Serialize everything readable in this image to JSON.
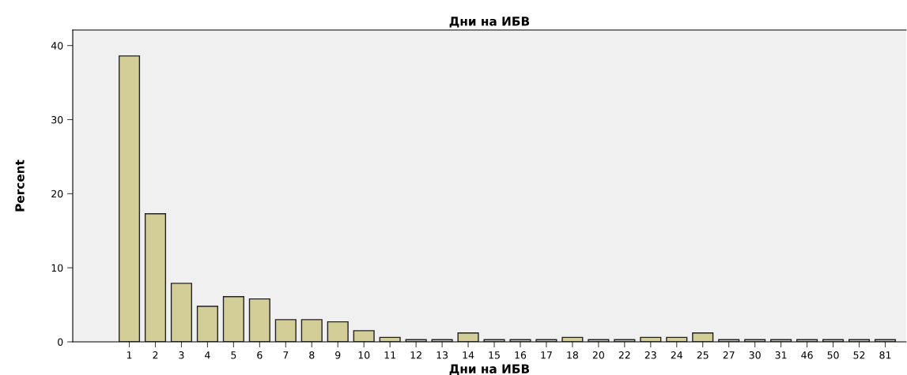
{
  "chart_data": {
    "type": "bar",
    "title": "Дни на ИБВ",
    "xlabel": "Дни на ИБВ",
    "ylabel": "Percent",
    "categories": [
      "1",
      "2",
      "3",
      "4",
      "5",
      "6",
      "7",
      "8",
      "9",
      "10",
      "11",
      "12",
      "13",
      "14",
      "15",
      "16",
      "17",
      "18",
      "20",
      "22",
      "23",
      "24",
      "25",
      "27",
      "30",
      "31",
      "46",
      "50",
      "52",
      "81"
    ],
    "values": [
      38.6,
      17.3,
      7.9,
      4.8,
      6.1,
      5.8,
      3.0,
      3.0,
      2.7,
      1.5,
      0.6,
      0.3,
      0.3,
      1.2,
      0.3,
      0.3,
      0.3,
      0.6,
      0.3,
      0.3,
      0.6,
      0.6,
      1.2,
      0.3,
      0.3,
      0.3,
      0.3,
      0.3,
      0.3,
      0.3
    ],
    "color": "#d3ce97",
    "ylim": [
      0,
      42.1
    ],
    "yticks": [
      0,
      10,
      20,
      30,
      40
    ],
    "grid": false,
    "legend": false
  }
}
